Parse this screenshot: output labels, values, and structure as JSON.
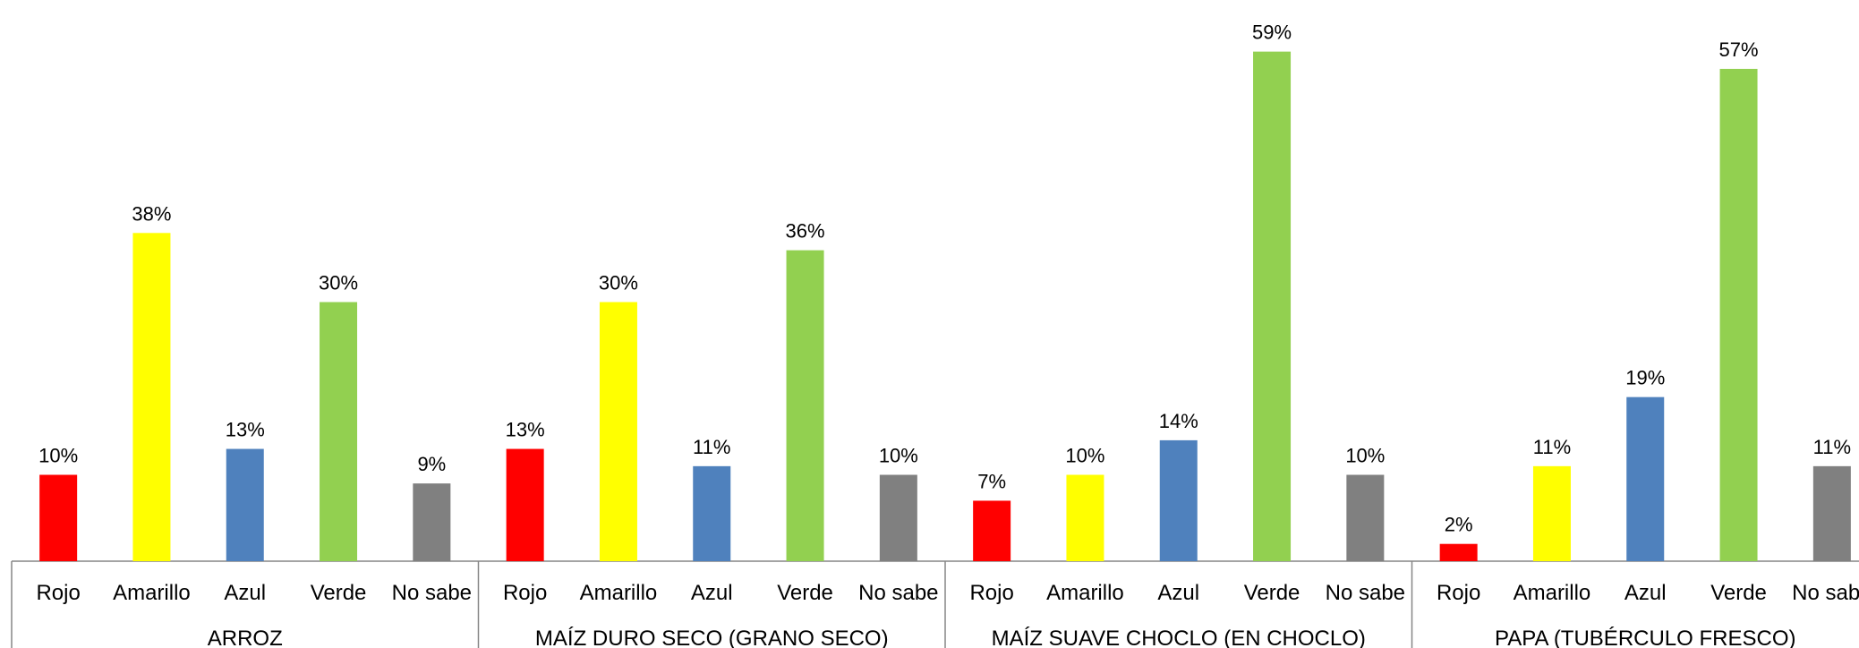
{
  "chart_data": {
    "type": "bar",
    "groups": [
      {
        "name": "ARROZ",
        "values": [
          10,
          38,
          13,
          30,
          9
        ]
      },
      {
        "name": "MAÍZ DURO SECO (GRANO SECO)",
        "values": [
          13,
          30,
          11,
          36,
          10
        ]
      },
      {
        "name": "MAÍZ SUAVE CHOCLO (EN CHOCLO)",
        "values": [
          7,
          10,
          14,
          59,
          10
        ]
      },
      {
        "name": "PAPA (TUBÉRCULO FRESCO)",
        "values": [
          2,
          11,
          19,
          57,
          11
        ]
      }
    ],
    "categories": [
      "Rojo",
      "Amarillo",
      "Azul",
      "Verde",
      "No sabe"
    ],
    "colors": [
      "#FF0000",
      "#FFFF00",
      "#4F81BD",
      "#92D050",
      "#808080"
    ],
    "value_suffix": "%",
    "ylim": [
      0,
      60
    ],
    "grid": false,
    "legend": "none"
  }
}
